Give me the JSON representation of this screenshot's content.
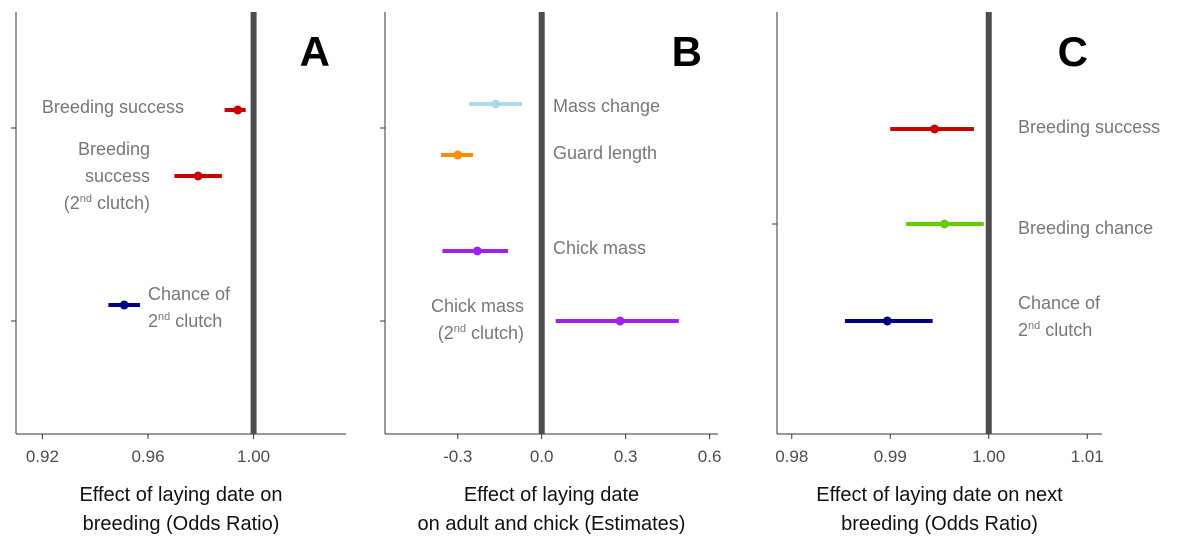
{
  "chart_data": [
    {
      "type": "forest",
      "panel": "A",
      "xlabel": [
        "Effect of laying date on",
        "breeding (Odds Ratio)"
      ],
      "xlim": [
        0.91,
        1.035
      ],
      "xticks": [
        0.92,
        0.96,
        1.0
      ],
      "xtick_labels": [
        "0.92",
        "0.96",
        "1.00"
      ],
      "reference_line": 1.0,
      "series": [
        {
          "label": [
            "Breeding success"
          ],
          "estimate": 0.994,
          "lower": 0.989,
          "upper": 0.997,
          "color": "#cc0000"
        },
        {
          "label": [
            "Breeding",
            "success",
            "(2|nd| clutch)"
          ],
          "estimate": 0.979,
          "lower": 0.97,
          "upper": 0.988,
          "color": "#cc0000"
        },
        {
          "label": [
            "Chance of",
            "2|nd| clutch"
          ],
          "estimate": 0.951,
          "lower": 0.945,
          "upper": 0.957,
          "color": "#000080"
        }
      ]
    },
    {
      "type": "forest",
      "panel": "B",
      "xlabel": [
        "Effect of laying date",
        "on adult and chick (Estimates)"
      ],
      "xlim": [
        -0.56,
        0.63
      ],
      "xticks": [
        -0.3,
        0.0,
        0.3,
        0.6
      ],
      "xtick_labels": [
        "-0.3",
        "0.0",
        "0.3",
        "0.6"
      ],
      "reference_line": 0.0,
      "series": [
        {
          "label": [
            "Mass change"
          ],
          "estimate": -0.165,
          "lower": -0.26,
          "upper": -0.07,
          "color": "#add8e6"
        },
        {
          "label": [
            "Guard length"
          ],
          "estimate": -0.3,
          "lower": -0.36,
          "upper": -0.245,
          "color": "#ff8c00"
        },
        {
          "label": [
            "Chick mass"
          ],
          "estimate": -0.23,
          "lower": -0.355,
          "upper": -0.12,
          "color": "#a020f0"
        },
        {
          "label": [
            "Chick mass",
            "(2|nd| clutch)"
          ],
          "estimate": 0.28,
          "lower": 0.05,
          "upper": 0.49,
          "color": "#a020f0"
        }
      ]
    },
    {
      "type": "forest",
      "panel": "C",
      "xlabel": [
        "Effect of laying date on next",
        "breeding (Odds Ratio)"
      ],
      "xlim": [
        0.9785,
        1.0115
      ],
      "xticks": [
        0.98,
        0.99,
        1.0,
        1.01
      ],
      "xtick_labels": [
        "0.98",
        "0.99",
        "1.00",
        "1.01"
      ],
      "reference_line": 1.0,
      "series": [
        {
          "label": [
            "Breeding success"
          ],
          "estimate": 0.9945,
          "lower": 0.99,
          "upper": 0.9985,
          "color": "#cc0000"
        },
        {
          "label": [
            "Breeding chance"
          ],
          "estimate": 0.9955,
          "lower": 0.9916,
          "upper": 0.9995,
          "color": "#66cc00"
        },
        {
          "label": [
            "Chance of",
            "2|nd| clutch"
          ],
          "estimate": 0.9897,
          "lower": 0.9854,
          "upper": 0.9943,
          "color": "#000080"
        }
      ]
    }
  ]
}
